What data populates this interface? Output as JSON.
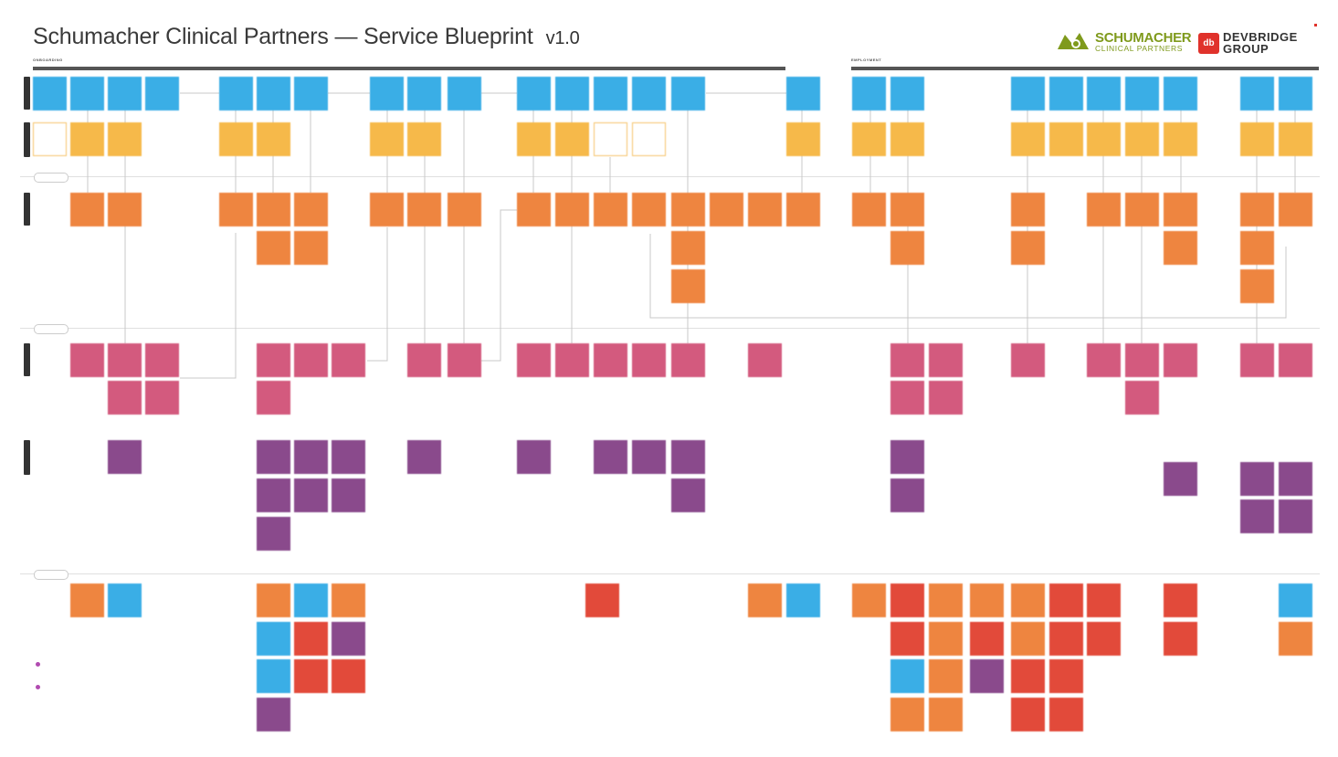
{
  "header": {
    "title": "Schumacher Clinical Partners — Service Blueprint",
    "version": "v1.0"
  },
  "sections": [
    {
      "label": "ONBOARDING"
    },
    {
      "label": "EMPLOYMENT"
    }
  ],
  "logos": {
    "schumacher_line1": "SCHUMACHER",
    "schumacher_line2": "CLINICAL PARTNERS",
    "devbridge_badge": "db",
    "devbridge_line1": "DEVBRIDGE",
    "devbridge_line2": "GROUP"
  },
  "colors": {
    "provider_action": "#3aaee6",
    "touchpoint": "#f6b94a",
    "frontstage": "#ee8540",
    "backstage": "#d35a7e",
    "system": "#8a4a8c",
    "pain_point": "#e24a3a",
    "schumacher_brand": "#7f9a1c",
    "devbridge_brand": "#e0322b"
  },
  "icons": [
    "schumacher-logo-icon",
    "devbridge-badge-icon"
  ]
}
